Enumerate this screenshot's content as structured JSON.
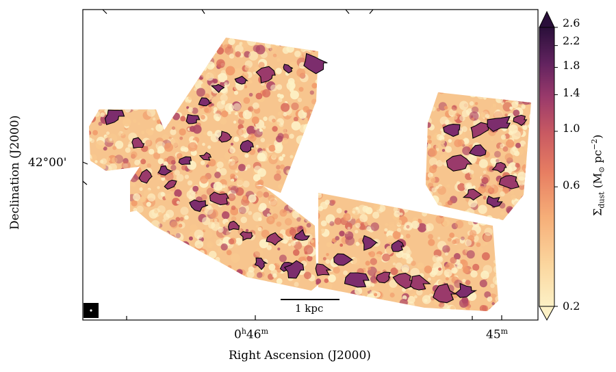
{
  "axes": {
    "xlabel": "Right Ascension (J2000)",
    "ylabel": "Declination (J2000)",
    "x_ticks": [
      {
        "hours": "0",
        "h_unit": "h",
        "minutes": "46",
        "m_unit": "m"
      },
      {
        "hours": "",
        "h_unit": "",
        "minutes": "45",
        "m_unit": "m"
      }
    ],
    "y_ticks": [
      "42°00'"
    ]
  },
  "scale_bar": {
    "label": "1 kpc"
  },
  "colorbar": {
    "label_sym": "Σ",
    "label_sub": "dust",
    "label_units": "(M",
    "label_sun": "⊙",
    "label_pc": " pc",
    "label_exp": "−2",
    "label_close": ")",
    "scale": "log",
    "cmap": "magma_r",
    "min": 0.2,
    "max": 2.6,
    "ticks": [
      "2.6",
      "2.2",
      "1.8",
      "1.4",
      "1.0",
      "0.6",
      "0.2"
    ],
    "tick_values": [
      2.6,
      2.2,
      1.8,
      1.4,
      1.0,
      0.6,
      0.2
    ],
    "colors": [
      "#fdf1c6",
      "#f9c98f",
      "#f19a6a",
      "#d96a5b",
      "#b04865",
      "#7c2d6d",
      "#4a1b5a",
      "#2a0f3a"
    ]
  }
}
